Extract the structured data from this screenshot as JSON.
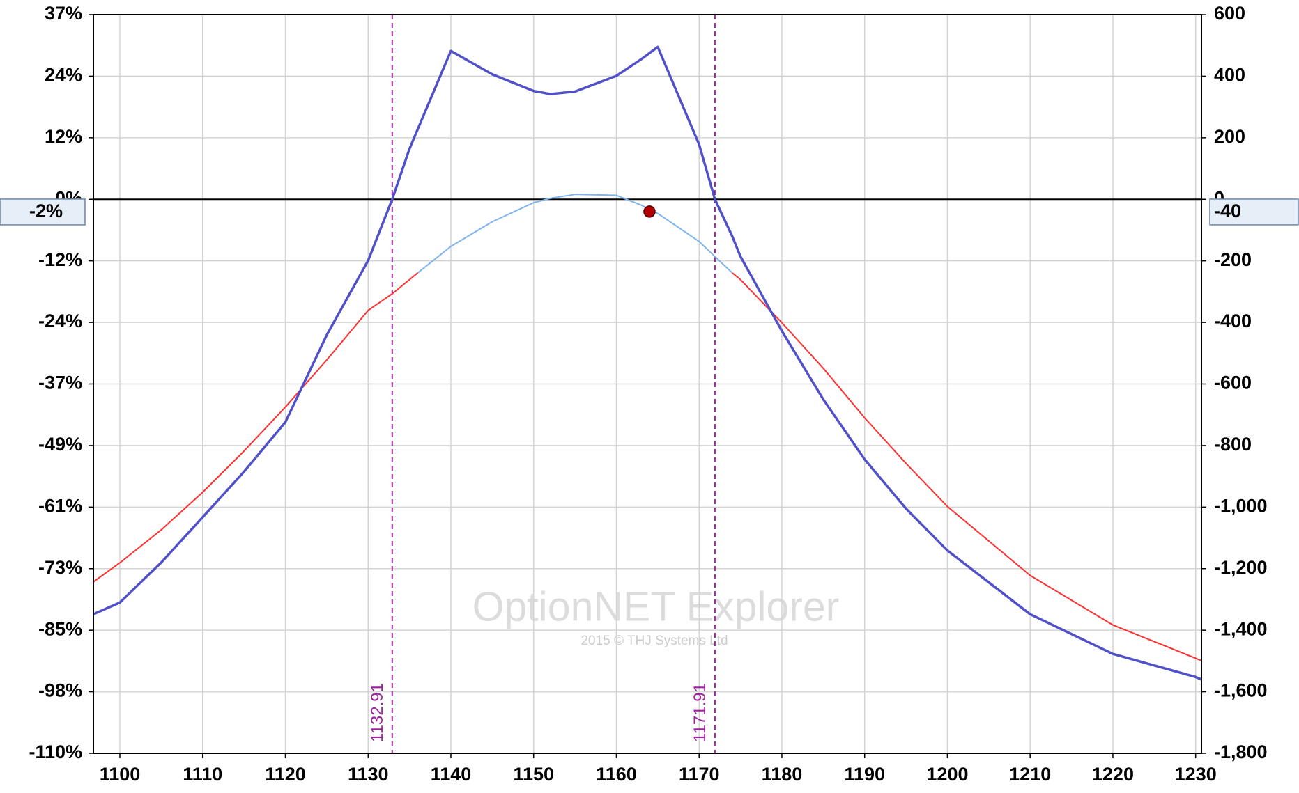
{
  "chart_data": {
    "type": "line",
    "x": [
      1096.8,
      1100,
      1105,
      1110,
      1115,
      1120,
      1125,
      1130,
      1132.91,
      1135,
      1136,
      1140,
      1145,
      1150,
      1152,
      1155,
      1160,
      1163,
      1165,
      1170,
      1171.91,
      1174,
      1175,
      1180,
      1185,
      1190,
      1195,
      1200,
      1210,
      1220,
      1230,
      1230.7
    ],
    "xlim": [
      1096.8,
      1230.7
    ],
    "xticks": [
      1100,
      1110,
      1120,
      1130,
      1140,
      1150,
      1160,
      1170,
      1180,
      1190,
      1200,
      1210,
      1220,
      1230
    ],
    "ylim": [
      -109.8,
      36.6
    ],
    "yticks": [
      {
        "value": 36.6,
        "label": "37%"
      },
      {
        "value": 24.4,
        "label": "24%"
      },
      {
        "value": 12.2,
        "label": "12%"
      },
      {
        "value": 0,
        "label": "0%"
      },
      {
        "value": -12.2,
        "label": "-12%"
      },
      {
        "value": -24.4,
        "label": "-24%"
      },
      {
        "value": -36.6,
        "label": "-37%"
      },
      {
        "value": -48.8,
        "label": "-49%"
      },
      {
        "value": -61,
        "label": "-61%"
      },
      {
        "value": -73.2,
        "label": "-73%"
      },
      {
        "value": -85.4,
        "label": "-85%"
      },
      {
        "value": -97.6,
        "label": "-98%"
      },
      {
        "value": -109.8,
        "label": "-110%"
      }
    ],
    "y2lim": [
      -1800,
      600
    ],
    "y2ticks": [
      600,
      400,
      200,
      0,
      -200,
      -400,
      -600,
      -800,
      {
        "value": -1000,
        "label": "-1,000"
      },
      {
        "value": -1200,
        "label": "-1,200"
      },
      {
        "value": -1400,
        "label": "-1,400"
      },
      {
        "value": -1600,
        "label": "-1,600"
      },
      {
        "value": -1800,
        "label": "-1,800"
      }
    ],
    "grid": true,
    "series": [
      {
        "color": "#ff3030",
        "axis": "y2",
        "values": [
          -1243,
          -1181,
          -1074,
          -952,
          -818,
          -675,
          -522,
          -361,
          -307,
          -261,
          -239,
          null,
          null,
          null,
          null,
          null,
          null,
          null,
          null,
          null,
          null,
          -239,
          -261,
          -401,
          -549,
          -710,
          -858,
          -998,
          -1222,
          -1383,
          -1491,
          -1499
        ]
      },
      {
        "color": "#80b4f0",
        "axis": "y2",
        "values": [
          null,
          null,
          null,
          null,
          null,
          null,
          null,
          null,
          null,
          null,
          -239,
          -153,
          -73,
          -11,
          3,
          16,
          13,
          -19,
          -46,
          -137,
          -186,
          -239,
          null,
          null,
          null,
          null,
          null,
          null,
          null,
          null,
          null,
          null
        ]
      },
      {
        "color": "#5050c8",
        "axis": "y2",
        "values": [
          -1348,
          -1310,
          -1180,
          -1033,
          -885,
          -724,
          -441,
          -199,
          0,
          164,
          228,
          482,
          406,
          352,
          342,
          350,
          401,
          455,
          495,
          178,
          0,
          -120,
          -186,
          -428,
          -650,
          -845,
          -1005,
          -1141,
          -1348,
          -1477,
          -1552,
          -1560
        ]
      }
    ],
    "vlines": [
      1132.91,
      1171.91
    ],
    "vline_color": "#a020a0",
    "marker": {
      "x": 1164,
      "y": -40,
      "color": "#b00000",
      "y_label": "-2%"
    },
    "watermark": {
      "title": "OptionNET Explorer",
      "subtitle": "2015 © THJ Systems Ltd"
    }
  }
}
